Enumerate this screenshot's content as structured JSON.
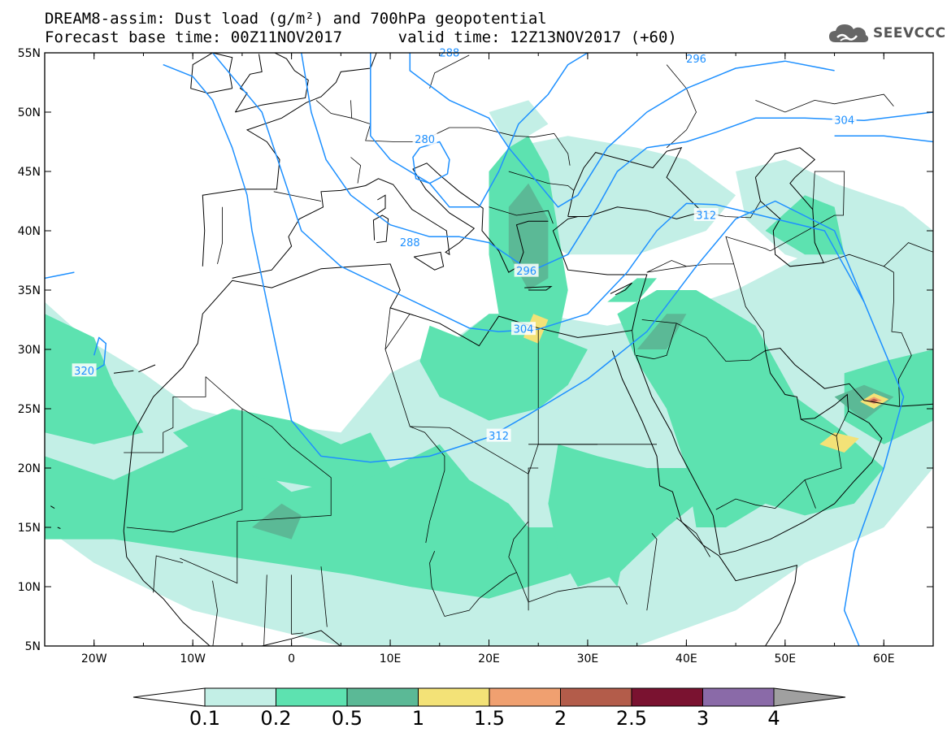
{
  "header": {
    "line1": "DREAM8-assim: Dust load (g/m²) and 700hPa geopotential",
    "line2": "Forecast base time: 00Z11NOV2017      valid time: 12Z13NOV2017 (+60)"
  },
  "logo": {
    "text": "SEEVCCC",
    "icon": "cloud-logo-icon"
  },
  "map": {
    "lon_range": [
      -25,
      65
    ],
    "lat_range": [
      5,
      55
    ],
    "lon_ticks": [
      {
        "value": -20,
        "label": "20W"
      },
      {
        "value": -10,
        "label": "10W"
      },
      {
        "value": 0,
        "label": "0"
      },
      {
        "value": 10,
        "label": "10E"
      },
      {
        "value": 20,
        "label": "20E"
      },
      {
        "value": 30,
        "label": "30E"
      },
      {
        "value": 40,
        "label": "40E"
      },
      {
        "value": 50,
        "label": "50E"
      },
      {
        "value": 60,
        "label": "60E"
      }
    ],
    "lat_ticks": [
      {
        "value": 55,
        "label": "55N"
      },
      {
        "value": 50,
        "label": "50N"
      },
      {
        "value": 45,
        "label": "45N"
      },
      {
        "value": 40,
        "label": "40N"
      },
      {
        "value": 35,
        "label": "35N"
      },
      {
        "value": 30,
        "label": "30N"
      },
      {
        "value": 25,
        "label": "25N"
      },
      {
        "value": 20,
        "label": "20N"
      },
      {
        "value": 15,
        "label": "15N"
      },
      {
        "value": 10,
        "label": "10N"
      },
      {
        "value": 5,
        "label": "5N"
      }
    ],
    "contour_color": "#1e90ff",
    "contour_labels": [
      {
        "text": "288",
        "lon": 16,
        "lat": 55
      },
      {
        "text": "296",
        "lon": 41,
        "lat": 54.5
      },
      {
        "text": "304",
        "lon": 56,
        "lat": 49.3
      },
      {
        "text": "280",
        "lon": 13.5,
        "lat": 47.7
      },
      {
        "text": "288",
        "lon": 12,
        "lat": 39
      },
      {
        "text": "312",
        "lon": 42,
        "lat": 41.3
      },
      {
        "text": "296",
        "lon": 23.8,
        "lat": 36.6
      },
      {
        "text": "304",
        "lon": 23.5,
        "lat": 31.7
      },
      {
        "text": "312",
        "lon": 21,
        "lat": 22.7
      },
      {
        "text": "320",
        "lon": -21,
        "lat": 28.2
      }
    ]
  },
  "colorbar": {
    "levels": [
      "0.1",
      "0.2",
      "0.5",
      "1",
      "1.5",
      "2",
      "2.5",
      "3",
      "4"
    ],
    "colors": [
      "#c3efe6",
      "#5de2b0",
      "#5bb996",
      "#f3e277",
      "#f0a070",
      "#b35c4a",
      "#7a1230",
      "#8a6aa8"
    ],
    "under_color": "#ffffff",
    "over_color": "#a0a0a0"
  },
  "dust_colors": {
    "light": "#c3efe6",
    "mid": "#5de2b0",
    "dark": "#5bb996",
    "yellow": "#f3e277",
    "orange": "#f0a070",
    "brown": "#b35c4a"
  }
}
